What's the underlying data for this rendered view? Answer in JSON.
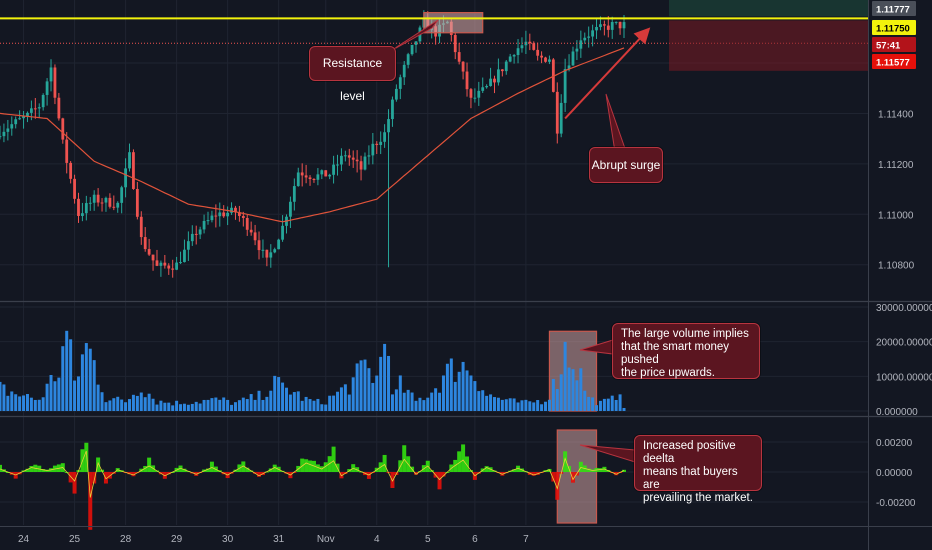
{
  "colors": {
    "background": "#131722",
    "grid": "#1f2431",
    "candle_up": "#26a69a",
    "candle_down": "#ef5350",
    "moving_average": "#e0533a",
    "resistance_line": "#f2f20c",
    "volume_bar": "#2d86df",
    "delta_positive": "#33e10f",
    "delta_negative": "#e5100a",
    "annotation_bg": "#5b1520",
    "annotation_border": "#b8343f",
    "highlight_box": "#d1a2a2"
  },
  "chart_data": [
    {
      "type": "candlestick",
      "pane": "price",
      "x_tick_labels": [
        "24",
        "25",
        "28",
        "29",
        "30",
        "31",
        "Nov",
        "4",
        "5",
        "6",
        "7"
      ],
      "y_tick_labels": [
        "1.10800",
        "1.11000",
        "1.11200",
        "1.11400"
      ],
      "ylim": [
        1.1066,
        1.1185
      ],
      "resistance_level": 1.11777,
      "price_labels": [
        {
          "text": "1.11777",
          "value": 1.11777,
          "color": "#4a4f59",
          "text_color": "#ffffff"
        },
        {
          "text": "1.11750",
          "value": 1.1175,
          "color": "#f2f20c",
          "text_color": "#000000"
        },
        {
          "text": "57:41",
          "value": 1.1169,
          "color": "#b3131a",
          "text_color": "#ffffff"
        },
        {
          "text": "1.11577",
          "value": 1.11577,
          "color": "#e5100a",
          "text_color": "#ffffff"
        }
      ],
      "key_points": [
        {
          "t": 0,
          "price": 1.1133
        },
        {
          "t": 7,
          "price": 1.1139
        },
        {
          "t": 10,
          "price": 1.1143
        },
        {
          "t": 13,
          "price": 1.1158
        },
        {
          "t": 16,
          "price": 1.1128
        },
        {
          "t": 20,
          "price": 1.11
        },
        {
          "t": 24,
          "price": 1.1106
        },
        {
          "t": 30,
          "price": 1.1104
        },
        {
          "t": 33,
          "price": 1.1123
        },
        {
          "t": 36,
          "price": 1.109
        },
        {
          "t": 40,
          "price": 1.1079
        },
        {
          "t": 45,
          "price": 1.108
        },
        {
          "t": 50,
          "price": 1.1093
        },
        {
          "t": 55,
          "price": 1.11
        },
        {
          "t": 60,
          "price": 1.1101
        },
        {
          "t": 64,
          "price": 1.1094
        },
        {
          "t": 68,
          "price": 1.1081
        },
        {
          "t": 72,
          "price": 1.1095
        },
        {
          "t": 76,
          "price": 1.1117
        },
        {
          "t": 80,
          "price": 1.1115
        },
        {
          "t": 84,
          "price": 1.1116
        },
        {
          "t": 88,
          "price": 1.1124
        },
        {
          "t": 92,
          "price": 1.1118
        },
        {
          "t": 95,
          "price": 1.1127
        },
        {
          "t": 98,
          "price": 1.1132
        },
        {
          "t": 101,
          "price": 1.115
        },
        {
          "t": 104,
          "price": 1.1162
        },
        {
          "t": 108,
          "price": 1.1176
        },
        {
          "t": 111,
          "price": 1.1172
        },
        {
          "t": 114,
          "price": 1.1176
        },
        {
          "t": 117,
          "price": 1.116
        },
        {
          "t": 120,
          "price": 1.1145
        },
        {
          "t": 124,
          "price": 1.115
        },
        {
          "t": 128,
          "price": 1.1158
        },
        {
          "t": 131,
          "price": 1.1165
        },
        {
          "t": 134,
          "price": 1.1168
        },
        {
          "t": 137,
          "price": 1.1162
        },
        {
          "t": 140,
          "price": 1.1162
        },
        {
          "t": 142,
          "price": 1.1134
        },
        {
          "t": 144,
          "price": 1.1158
        },
        {
          "t": 148,
          "price": 1.117
        },
        {
          "t": 152,
          "price": 1.1173
        },
        {
          "t": 156,
          "price": 1.1175
        },
        {
          "t": 159,
          "price": 1.1175
        }
      ],
      "moving_average_points": [
        {
          "t": 0,
          "price": 1.114
        },
        {
          "t": 12,
          "price": 1.1138
        },
        {
          "t": 24,
          "price": 1.1121
        },
        {
          "t": 36,
          "price": 1.1113
        },
        {
          "t": 48,
          "price": 1.1104
        },
        {
          "t": 60,
          "price": 1.1101
        },
        {
          "t": 72,
          "price": 1.1097
        },
        {
          "t": 84,
          "price": 1.1101
        },
        {
          "t": 96,
          "price": 1.1106
        },
        {
          "t": 108,
          "price": 1.1122
        },
        {
          "t": 120,
          "price": 1.1138
        },
        {
          "t": 132,
          "price": 1.1148
        },
        {
          "t": 144,
          "price": 1.1157
        },
        {
          "t": 159,
          "price": 1.1166
        }
      ],
      "highlight_box": {
        "t_start": 108,
        "t_end": 123,
        "price_top": 1.118,
        "price_bottom": 1.1172
      },
      "arrows": [
        {
          "from_t": 144,
          "from_price": 1.1138,
          "to_t": 165,
          "to_price": 1.1173
        },
        {
          "from_t": 153,
          "from_price": 1.1145,
          "to_t": 158,
          "to_price": 1.1155
        }
      ]
    },
    {
      "type": "bar",
      "pane": "volume",
      "y_tick_labels": [
        "0.000000",
        "10000.000000",
        "20000.000000",
        "30000.000000"
      ],
      "ylim": [
        0,
        30000
      ],
      "key_values": [
        {
          "t": 0,
          "v": 7000
        },
        {
          "t": 5,
          "v": 5000
        },
        {
          "t": 10,
          "v": 3500
        },
        {
          "t": 15,
          "v": 13000
        },
        {
          "t": 17,
          "v": 24000
        },
        {
          "t": 19,
          "v": 9000
        },
        {
          "t": 22,
          "v": 20000
        },
        {
          "t": 24,
          "v": 15000
        },
        {
          "t": 27,
          "v": 4000
        },
        {
          "t": 32,
          "v": 3000
        },
        {
          "t": 36,
          "v": 8000
        },
        {
          "t": 40,
          "v": 3000
        },
        {
          "t": 45,
          "v": 2500
        },
        {
          "t": 50,
          "v": 3000
        },
        {
          "t": 56,
          "v": 3500
        },
        {
          "t": 60,
          "v": 2500
        },
        {
          "t": 66,
          "v": 4500
        },
        {
          "t": 70,
          "v": 8500
        },
        {
          "t": 74,
          "v": 6500
        },
        {
          "t": 78,
          "v": 3500
        },
        {
          "t": 82,
          "v": 2500
        },
        {
          "t": 86,
          "v": 5500
        },
        {
          "t": 90,
          "v": 9000
        },
        {
          "t": 93,
          "v": 14000
        },
        {
          "t": 96,
          "v": 10000
        },
        {
          "t": 99,
          "v": 28000
        },
        {
          "t": 100,
          "v": 4000
        },
        {
          "t": 102,
          "v": 8000
        },
        {
          "t": 106,
          "v": 3000
        },
        {
          "t": 110,
          "v": 6000
        },
        {
          "t": 114,
          "v": 12000
        },
        {
          "t": 117,
          "v": 14500
        },
        {
          "t": 120,
          "v": 13000
        },
        {
          "t": 122,
          "v": 9500
        },
        {
          "t": 124,
          "v": 5000
        },
        {
          "t": 127,
          "v": 4000
        },
        {
          "t": 130,
          "v": 3000
        },
        {
          "t": 134,
          "v": 2500
        },
        {
          "t": 139,
          "v": 3500
        },
        {
          "t": 142,
          "v": 10000
        },
        {
          "t": 144,
          "v": 19000
        },
        {
          "t": 146,
          "v": 16000
        },
        {
          "t": 148,
          "v": 11000
        },
        {
          "t": 150,
          "v": 4000
        },
        {
          "t": 153,
          "v": 2500
        },
        {
          "t": 156,
          "v": 3500
        },
        {
          "t": 158,
          "v": 7000
        },
        {
          "t": 159,
          "v": 1500
        }
      ],
      "highlight_box": {
        "t_start": 140,
        "t_end": 152,
        "v_top": 23000,
        "v_bottom": 0
      }
    },
    {
      "type": "area",
      "pane": "delta",
      "y_tick_labels": [
        "-0.00200",
        "0.00000",
        "0.00200"
      ],
      "ylim": [
        -0.0035,
        0.0026
      ],
      "key_values": [
        {
          "t": 0,
          "v": 0.0004
        },
        {
          "t": 4,
          "v": -0.0004
        },
        {
          "t": 8,
          "v": 0.0006
        },
        {
          "t": 12,
          "v": 0.0002
        },
        {
          "t": 16,
          "v": 0.0006
        },
        {
          "t": 19,
          "v": -0.0012
        },
        {
          "t": 22,
          "v": 0.0028
        },
        {
          "t": 23,
          "v": -0.0034
        },
        {
          "t": 25,
          "v": 0.0012
        },
        {
          "t": 27,
          "v": -0.0009
        },
        {
          "t": 30,
          "v": 0.0003
        },
        {
          "t": 34,
          "v": -0.0004
        },
        {
          "t": 38,
          "v": 0.0008
        },
        {
          "t": 42,
          "v": -0.0005
        },
        {
          "t": 46,
          "v": 0.0005
        },
        {
          "t": 50,
          "v": -0.0003
        },
        {
          "t": 54,
          "v": 0.0006
        },
        {
          "t": 58,
          "v": -0.0004
        },
        {
          "t": 62,
          "v": 0.0008
        },
        {
          "t": 66,
          "v": -0.0005
        },
        {
          "t": 70,
          "v": 0.0006
        },
        {
          "t": 74,
          "v": -0.0004
        },
        {
          "t": 78,
          "v": 0.0012
        },
        {
          "t": 82,
          "v": 0.0004
        },
        {
          "t": 85,
          "v": 0.0015
        },
        {
          "t": 87,
          "v": -0.0005
        },
        {
          "t": 90,
          "v": 0.0005
        },
        {
          "t": 94,
          "v": -0.0004
        },
        {
          "t": 98,
          "v": 0.001
        },
        {
          "t": 100,
          "v": -0.0012
        },
        {
          "t": 103,
          "v": 0.0017
        },
        {
          "t": 106,
          "v": -0.0003
        },
        {
          "t": 109,
          "v": 0.0008
        },
        {
          "t": 112,
          "v": -0.001
        },
        {
          "t": 115,
          "v": 0.0005
        },
        {
          "t": 118,
          "v": 0.0016
        },
        {
          "t": 121,
          "v": -0.0005
        },
        {
          "t": 124,
          "v": 0.0006
        },
        {
          "t": 128,
          "v": -0.0003
        },
        {
          "t": 132,
          "v": 0.0005
        },
        {
          "t": 136,
          "v": -0.0004
        },
        {
          "t": 140,
          "v": 0.0003
        },
        {
          "t": 142,
          "v": -0.0022
        },
        {
          "t": 144,
          "v": 0.0018
        },
        {
          "t": 146,
          "v": -0.001
        },
        {
          "t": 148,
          "v": 0.0006
        },
        {
          "t": 151,
          "v": 0.0002
        },
        {
          "t": 154,
          "v": 0.0004
        },
        {
          "t": 157,
          "v": -0.0003
        },
        {
          "t": 159,
          "v": 0.0002
        }
      ],
      "highlight_box": {
        "t_start": 142,
        "t_end": 152,
        "v_top": 0.0028,
        "v_bottom": -0.0034
      }
    }
  ],
  "annotations": {
    "resistance": "Resistance level",
    "surge": "Abrupt surge",
    "volume": [
      "The large volume implies",
      "that the smart money pushed",
      "the price upwards."
    ],
    "delta": [
      "Increased positive deelta",
      "means that buyers are",
      "prevailing the market."
    ]
  }
}
